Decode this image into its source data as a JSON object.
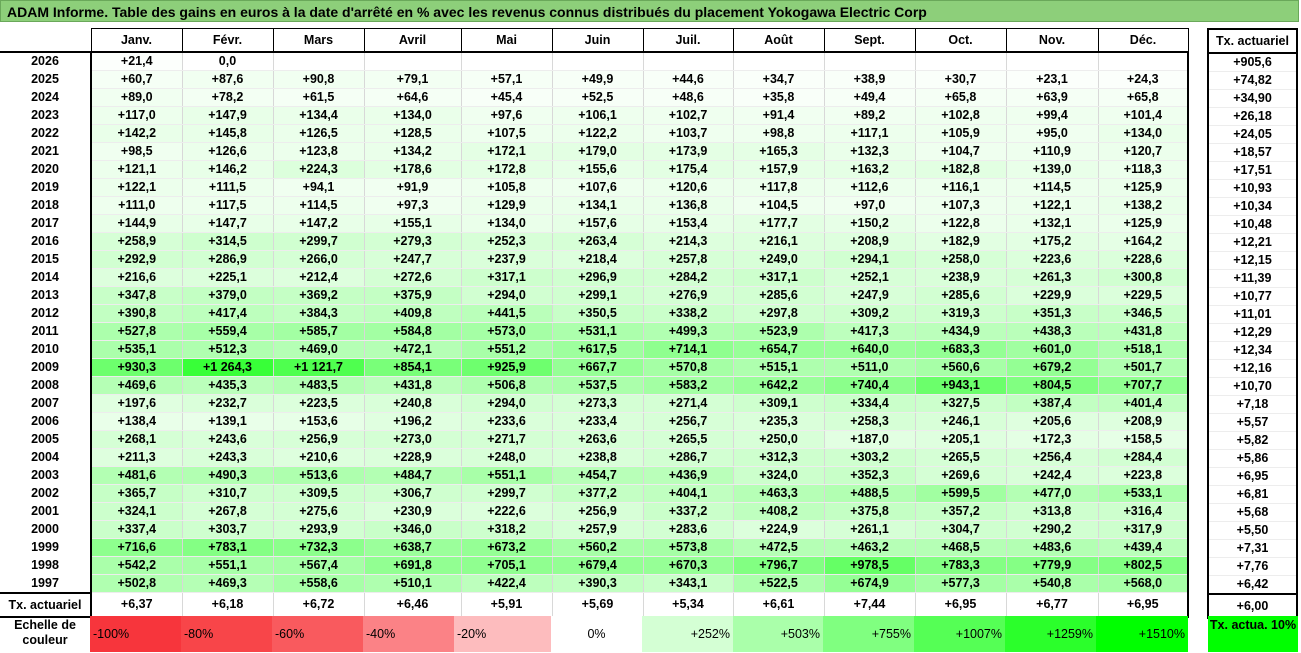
{
  "title": "ADAM Informe. Table des gains en euros à la date d'arrêté en % avec les revenus connus distribués du placement Yokogawa Electric Corp",
  "months": [
    "Janv.",
    "Févr.",
    "Mars",
    "Avril",
    "Mai",
    "Juin",
    "Juil.",
    "Août",
    "Sept.",
    "Oct.",
    "Nov.",
    "Déc."
  ],
  "side_header": "Tx. actuariel",
  "rows": [
    {
      "year": "2026",
      "values": [
        "+21,4",
        "0,0",
        "",
        "",
        "",
        "",
        "",
        "",
        "",
        "",
        "",
        ""
      ],
      "side": "+905,6"
    },
    {
      "year": "2025",
      "values": [
        "+60,7",
        "+87,6",
        "+90,8",
        "+79,1",
        "+57,1",
        "+49,9",
        "+44,6",
        "+34,7",
        "+38,9",
        "+30,7",
        "+23,1",
        "+24,3"
      ],
      "side": "+74,82"
    },
    {
      "year": "2024",
      "values": [
        "+89,0",
        "+78,2",
        "+61,5",
        "+64,6",
        "+45,4",
        "+52,5",
        "+48,6",
        "+35,8",
        "+49,4",
        "+65,8",
        "+63,9",
        "+65,8"
      ],
      "side": "+34,90"
    },
    {
      "year": "2023",
      "values": [
        "+117,0",
        "+147,9",
        "+134,4",
        "+134,0",
        "+97,6",
        "+106,1",
        "+102,7",
        "+91,4",
        "+89,2",
        "+102,8",
        "+99,4",
        "+101,4"
      ],
      "side": "+26,18"
    },
    {
      "year": "2022",
      "values": [
        "+142,2",
        "+145,8",
        "+126,5",
        "+128,5",
        "+107,5",
        "+122,2",
        "+103,7",
        "+98,8",
        "+117,1",
        "+105,9",
        "+95,0",
        "+134,0"
      ],
      "side": "+24,05"
    },
    {
      "year": "2021",
      "values": [
        "+98,5",
        "+126,6",
        "+123,8",
        "+134,2",
        "+172,1",
        "+179,0",
        "+173,9",
        "+165,3",
        "+132,3",
        "+104,7",
        "+110,9",
        "+120,7"
      ],
      "side": "+18,57"
    },
    {
      "year": "2020",
      "values": [
        "+121,1",
        "+146,2",
        "+224,3",
        "+178,6",
        "+172,8",
        "+155,6",
        "+175,4",
        "+157,9",
        "+163,2",
        "+182,8",
        "+139,0",
        "+118,3"
      ],
      "side": "+17,51"
    },
    {
      "year": "2019",
      "values": [
        "+122,1",
        "+111,5",
        "+94,1",
        "+91,9",
        "+105,8",
        "+107,6",
        "+120,6",
        "+117,8",
        "+112,6",
        "+116,1",
        "+114,5",
        "+125,9"
      ],
      "side": "+10,93"
    },
    {
      "year": "2018",
      "values": [
        "+111,0",
        "+117,5",
        "+114,5",
        "+97,3",
        "+129,9",
        "+134,1",
        "+136,8",
        "+104,5",
        "+97,0",
        "+107,3",
        "+122,1",
        "+138,2"
      ],
      "side": "+10,34"
    },
    {
      "year": "2017",
      "values": [
        "+144,9",
        "+147,7",
        "+147,2",
        "+155,1",
        "+134,0",
        "+157,6",
        "+153,4",
        "+177,7",
        "+150,2",
        "+122,8",
        "+132,1",
        "+125,9"
      ],
      "side": "+10,48"
    },
    {
      "year": "2016",
      "values": [
        "+258,9",
        "+314,5",
        "+299,7",
        "+279,3",
        "+252,3",
        "+263,4",
        "+214,3",
        "+216,1",
        "+208,9",
        "+182,9",
        "+175,2",
        "+164,2"
      ],
      "side": "+12,21"
    },
    {
      "year": "2015",
      "values": [
        "+292,9",
        "+286,9",
        "+266,0",
        "+247,7",
        "+237,9",
        "+218,4",
        "+257,8",
        "+249,0",
        "+294,1",
        "+258,0",
        "+223,6",
        "+228,6"
      ],
      "side": "+12,15"
    },
    {
      "year": "2014",
      "values": [
        "+216,6",
        "+225,1",
        "+212,4",
        "+272,6",
        "+317,1",
        "+296,9",
        "+284,2",
        "+317,1",
        "+252,1",
        "+238,9",
        "+261,3",
        "+300,8"
      ],
      "side": "+11,39"
    },
    {
      "year": "2013",
      "values": [
        "+347,8",
        "+379,0",
        "+369,2",
        "+375,9",
        "+294,0",
        "+299,1",
        "+276,9",
        "+285,6",
        "+247,9",
        "+285,6",
        "+229,9",
        "+229,5"
      ],
      "side": "+10,77"
    },
    {
      "year": "2012",
      "values": [
        "+390,8",
        "+417,4",
        "+384,3",
        "+409,8",
        "+441,5",
        "+350,5",
        "+338,2",
        "+297,8",
        "+309,2",
        "+319,3",
        "+351,3",
        "+346,5"
      ],
      "side": "+11,01"
    },
    {
      "year": "2011",
      "values": [
        "+527,8",
        "+559,4",
        "+585,7",
        "+584,8",
        "+573,0",
        "+531,1",
        "+499,3",
        "+523,9",
        "+417,3",
        "+434,9",
        "+438,3",
        "+431,8"
      ],
      "side": "+12,29"
    },
    {
      "year": "2010",
      "values": [
        "+535,1",
        "+512,3",
        "+469,0",
        "+472,1",
        "+551,2",
        "+617,5",
        "+714,1",
        "+654,7",
        "+640,0",
        "+683,3",
        "+601,0",
        "+518,1"
      ],
      "side": "+12,34"
    },
    {
      "year": "2009",
      "values": [
        "+930,3",
        "+1 264,3",
        "+1 121,7",
        "+854,1",
        "+925,9",
        "+667,7",
        "+570,8",
        "+515,1",
        "+511,0",
        "+560,6",
        "+679,2",
        "+501,7"
      ],
      "side": "+12,16"
    },
    {
      "year": "2008",
      "values": [
        "+469,6",
        "+435,3",
        "+483,5",
        "+431,8",
        "+506,8",
        "+537,5",
        "+583,2",
        "+642,2",
        "+740,4",
        "+943,1",
        "+804,5",
        "+707,7"
      ],
      "side": "+10,70"
    },
    {
      "year": "2007",
      "values": [
        "+197,6",
        "+232,7",
        "+223,5",
        "+240,8",
        "+294,0",
        "+273,3",
        "+271,4",
        "+309,1",
        "+334,4",
        "+327,5",
        "+387,4",
        "+401,4"
      ],
      "side": "+7,18"
    },
    {
      "year": "2006",
      "values": [
        "+138,4",
        "+139,1",
        "+153,6",
        "+196,2",
        "+233,6",
        "+233,4",
        "+256,7",
        "+235,3",
        "+258,3",
        "+246,1",
        "+205,6",
        "+208,9"
      ],
      "side": "+5,57"
    },
    {
      "year": "2005",
      "values": [
        "+268,1",
        "+243,6",
        "+256,9",
        "+273,0",
        "+271,7",
        "+263,6",
        "+265,5",
        "+250,0",
        "+187,0",
        "+205,1",
        "+172,3",
        "+158,5"
      ],
      "side": "+5,82"
    },
    {
      "year": "2004",
      "values": [
        "+211,3",
        "+243,3",
        "+210,6",
        "+228,9",
        "+248,0",
        "+238,8",
        "+286,7",
        "+312,3",
        "+303,2",
        "+265,5",
        "+256,4",
        "+284,4"
      ],
      "side": "+5,86"
    },
    {
      "year": "2003",
      "values": [
        "+481,6",
        "+490,3",
        "+513,6",
        "+484,7",
        "+551,1",
        "+454,7",
        "+436,9",
        "+324,0",
        "+352,3",
        "+269,6",
        "+242,4",
        "+223,8"
      ],
      "side": "+6,95"
    },
    {
      "year": "2002",
      "values": [
        "+365,7",
        "+310,7",
        "+309,5",
        "+306,7",
        "+299,7",
        "+377,2",
        "+404,1",
        "+463,3",
        "+488,5",
        "+599,5",
        "+477,0",
        "+533,1"
      ],
      "side": "+6,81"
    },
    {
      "year": "2001",
      "values": [
        "+324,1",
        "+267,8",
        "+275,6",
        "+230,9",
        "+222,6",
        "+256,9",
        "+337,2",
        "+408,2",
        "+375,8",
        "+357,2",
        "+313,8",
        "+316,4"
      ],
      "side": "+5,68"
    },
    {
      "year": "2000",
      "values": [
        "+337,4",
        "+303,7",
        "+293,9",
        "+346,0",
        "+318,2",
        "+257,9",
        "+283,6",
        "+224,9",
        "+261,1",
        "+304,7",
        "+290,2",
        "+317,9"
      ],
      "side": "+5,50"
    },
    {
      "year": "1999",
      "values": [
        "+716,6",
        "+783,1",
        "+732,3",
        "+638,7",
        "+673,2",
        "+560,2",
        "+573,8",
        "+472,5",
        "+463,2",
        "+468,5",
        "+483,6",
        "+439,4"
      ],
      "side": "+7,31"
    },
    {
      "year": "1998",
      "values": [
        "+542,2",
        "+551,1",
        "+567,4",
        "+691,8",
        "+705,1",
        "+679,4",
        "+670,3",
        "+796,7",
        "+978,5",
        "+783,3",
        "+779,9",
        "+802,5"
      ],
      "side": "+7,76"
    },
    {
      "year": "1997",
      "values": [
        "+502,8",
        "+469,3",
        "+558,6",
        "+510,1",
        "+422,4",
        "+390,3",
        "+343,1",
        "+522,5",
        "+674,9",
        "+577,3",
        "+540,8",
        "+568,0"
      ],
      "side": "+6,42"
    }
  ],
  "footer": {
    "label": "Tx. actuariel",
    "values": [
      "+6,37",
      "+6,18",
      "+6,72",
      "+6,46",
      "+5,91",
      "+5,69",
      "+5,34",
      "+6,61",
      "+7,44",
      "+6,95",
      "+6,77",
      "+6,95"
    ],
    "side": "+6,00"
  },
  "legend": {
    "label": "Echelle de couleur",
    "items": [
      {
        "text": "-100%",
        "color": "#f7353c",
        "align": "left"
      },
      {
        "text": "-80%",
        "color": "#f84549",
        "align": "left"
      },
      {
        "text": "-60%",
        "color": "#f95a5e",
        "align": "left"
      },
      {
        "text": "-40%",
        "color": "#fb8286",
        "align": "left"
      },
      {
        "text": "-20%",
        "color": "#fdbcbe",
        "align": "left"
      },
      {
        "text": "0%",
        "color": "#ffffff",
        "align": "center"
      },
      {
        "text": "+252%",
        "color": "#d4ffd4",
        "align": "right"
      },
      {
        "text": "+503%",
        "color": "#aaffaa",
        "align": "right"
      },
      {
        "text": "+755%",
        "color": "#80ff80",
        "align": "right"
      },
      {
        "text": "+1007%",
        "color": "#55ff55",
        "align": "right"
      },
      {
        "text": "+1259%",
        "color": "#2bff2b",
        "align": "right"
      },
      {
        "text": "+1510%",
        "color": "#00ff00",
        "align": "right"
      }
    ],
    "side": "Tx. actua. 10%"
  },
  "colors": {
    "title_bg": "#8dcf7a",
    "scale_max_green": "#00ff00",
    "scale_max_red": "#f7353c"
  },
  "scale_max_percent": 1510
}
